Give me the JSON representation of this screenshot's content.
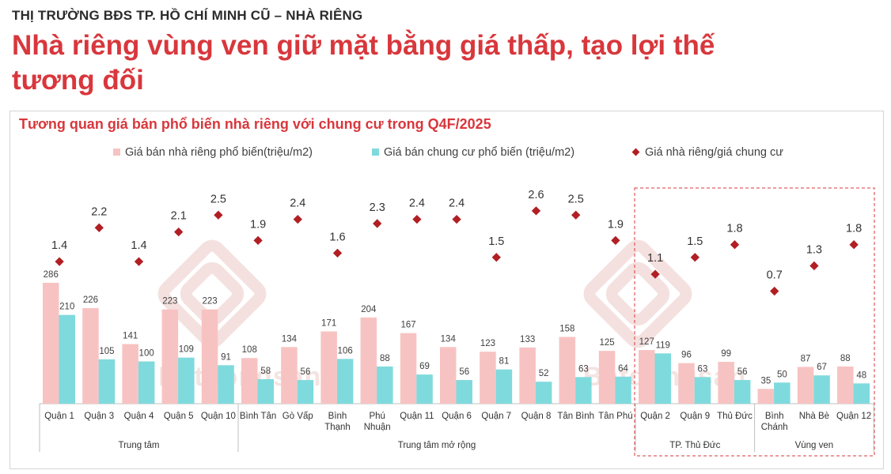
{
  "header": {
    "kicker": "THỊ TRƯỜNG BĐS TP. HỒ CHÍ MINH CŨ –  NHÀ RIÊNG",
    "headline": "Nhà riêng vùng ven giữ mặt bằng giá thấp, tạo lợi thế tương đối"
  },
  "watermark": {
    "text": "Batdongsan",
    "small": ".com.vn"
  },
  "colors": {
    "house": "#f7c3c2",
    "condo": "#7fdadd",
    "ratio": "#b11f24",
    "accent": "#d8373c"
  },
  "chart_data": {
    "type": "bar",
    "title": "Tương quan giá bán phổ biến nhà riêng với chung cư trong Q4F/2025",
    "categories": [
      "Quận 1",
      "Quận 3",
      "Quận 4",
      "Quận 5",
      "Quận 10",
      "Bình Tân",
      "Gò Vấp",
      "Bình Thạnh",
      "Phú Nhuận",
      "Quận 11",
      "Quận 6",
      "Quận 7",
      "Quận 8",
      "Tân Bình",
      "Tân Phú",
      "Quận 2",
      "Quận 9",
      "Thủ Đức",
      "Bình Chánh",
      "Nhà Bè",
      "Quận 12"
    ],
    "series": [
      {
        "name": "Giá bán nhà riêng phổ biến(triệu/m2)",
        "type": "bar",
        "values": [
          286,
          226,
          141,
          223,
          223,
          108,
          134,
          171,
          204,
          167,
          134,
          123,
          133,
          158,
          125,
          127,
          96,
          99,
          35,
          87,
          88
        ]
      },
      {
        "name": "Giá bán chung cư phổ biến (triệu/m2)",
        "type": "bar",
        "values": [
          210,
          105,
          100,
          109,
          91,
          58,
          56,
          106,
          88,
          69,
          56,
          81,
          52,
          63,
          64,
          119,
          63,
          56,
          50,
          67,
          48
        ]
      },
      {
        "name": "Giá nhà riêng/giá chung cư",
        "type": "marker",
        "values": [
          1.4,
          2.2,
          1.4,
          2.1,
          2.5,
          1.9,
          2.4,
          1.6,
          2.3,
          2.4,
          2.4,
          1.5,
          2.6,
          2.5,
          1.9,
          1.1,
          1.5,
          1.8,
          0.7,
          1.3,
          1.8
        ]
      }
    ],
    "groups": [
      {
        "label": "Trung tâm",
        "from": 0,
        "to": 4
      },
      {
        "label": "Trung tâm mở rộng",
        "from": 5,
        "to": 14
      },
      {
        "label": "TP. Thủ Đức",
        "from": 15,
        "to": 17
      },
      {
        "label": "Vùng ven",
        "from": 18,
        "to": 20
      }
    ],
    "highlight_groups": [
      "TP. Thủ Đức",
      "Vùng ven"
    ],
    "legend_position": "top",
    "grid": false
  }
}
